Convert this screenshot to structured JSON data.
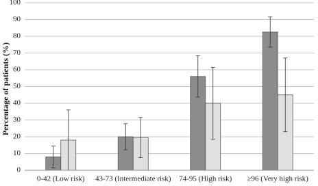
{
  "chart_data": {
    "type": "bar",
    "y_label": "Percentage of patients (%)",
    "categories": [
      "0-42 (Low risk)",
      "43-73 (Intermediate risk)",
      "74-95 (High risk)",
      "≥96 (Very high risk)"
    ],
    "series": [
      {
        "color": "#8c8c8c",
        "values": [
          8,
          20,
          56,
          82.5
        ],
        "errors": [
          6.5,
          7.8,
          12.3,
          9
        ]
      },
      {
        "color": "#e0e0e0",
        "values": [
          18,
          19.5,
          40,
          45
        ],
        "errors": [
          18,
          12,
          21.5,
          22
        ]
      }
    ],
    "ylim": [
      0,
      100
    ],
    "yticks": [
      0,
      10,
      20,
      30,
      40,
      50,
      60,
      70,
      80,
      90,
      100
    ],
    "grid": true
  }
}
